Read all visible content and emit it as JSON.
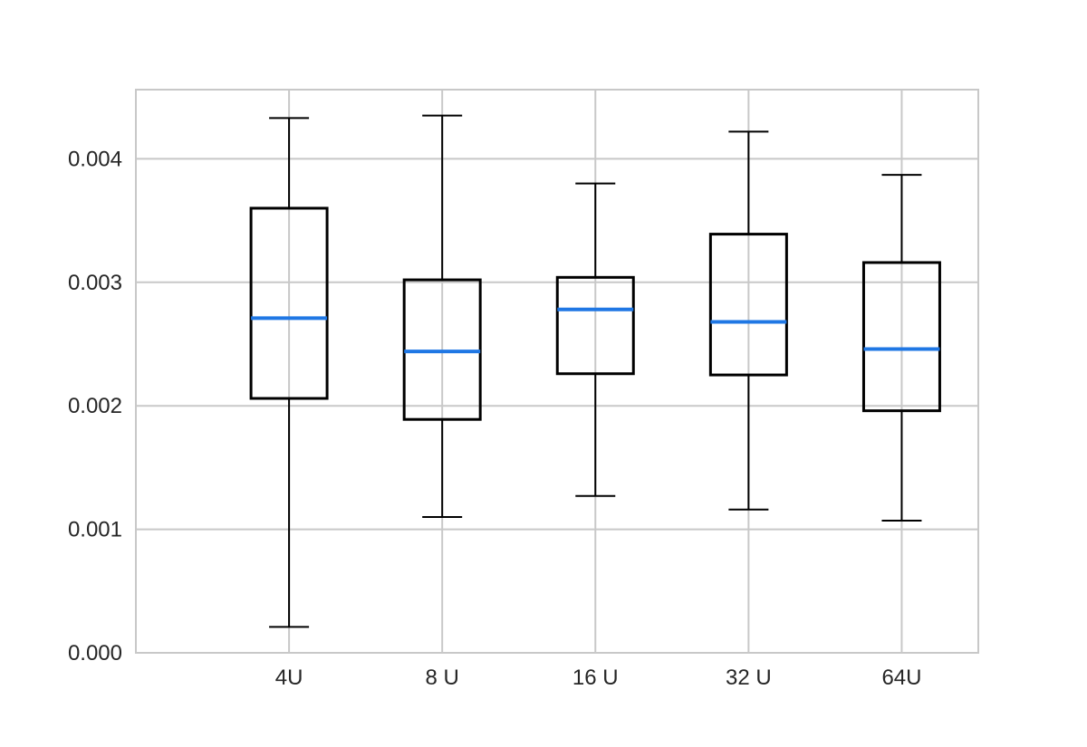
{
  "chart_data": {
    "type": "box",
    "categories": [
      "4U",
      "8 U",
      "16 U",
      "32 U",
      "64U"
    ],
    "boxes": [
      {
        "whisker_low": 0.00021,
        "q1": 0.00206,
        "median": 0.00271,
        "q3": 0.0036,
        "whisker_high": 0.00433
      },
      {
        "whisker_low": 0.0011,
        "q1": 0.00189,
        "median": 0.00244,
        "q3": 0.00302,
        "whisker_high": 0.00435
      },
      {
        "whisker_low": 0.00127,
        "q1": 0.00226,
        "median": 0.00278,
        "q3": 0.00304,
        "whisker_high": 0.0038
      },
      {
        "whisker_low": 0.00116,
        "q1": 0.00225,
        "median": 0.00268,
        "q3": 0.00339,
        "whisker_high": 0.00422
      },
      {
        "whisker_low": 0.00107,
        "q1": 0.00196,
        "median": 0.00246,
        "q3": 0.00316,
        "whisker_high": 0.00387
      }
    ],
    "y_ticks": [
      "0.000",
      "0.001",
      "0.002",
      "0.003",
      "0.004"
    ],
    "y_tick_values": [
      0,
      0.001,
      0.002,
      0.003,
      0.004
    ],
    "ylim": [
      0,
      0.00456
    ],
    "grid": true,
    "colors": {
      "box": "#000000",
      "median": "#1f77e4",
      "grid": "#c8c8c8",
      "text": "#262626"
    }
  }
}
